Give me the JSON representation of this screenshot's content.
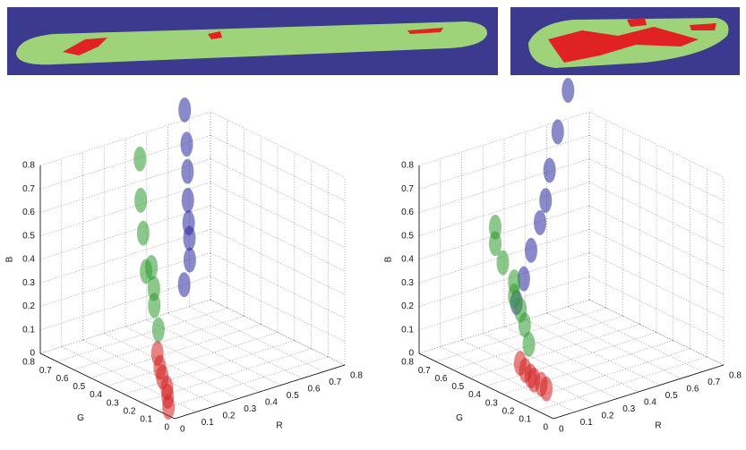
{
  "chart_data": [
    {
      "type": "scatter3d",
      "xlabel": "R",
      "ylabel": "G",
      "zlabel": "B",
      "xlim": [
        0,
        0.8
      ],
      "ylim": [
        0,
        0.8
      ],
      "zlim": [
        0,
        0.8
      ],
      "xticks": [
        0,
        0.1,
        0.2,
        0.3,
        0.4,
        0.5,
        0.6,
        0.7,
        0.8
      ],
      "yticks": [
        0,
        0.1,
        0.2,
        0.3,
        0.4,
        0.5,
        0.6,
        0.7,
        0.8
      ],
      "zticks": [
        0,
        0.1,
        0.2,
        0.3,
        0.4,
        0.5,
        0.6,
        0.7,
        0.8
      ],
      "grid": true,
      "series": [
        {
          "color": "#2e9a2e",
          "x": [
            0.2,
            0.22,
            0.25,
            0.27,
            0.3,
            0.31,
            0.33,
            0.35
          ],
          "y": [
            0.35,
            0.4,
            0.44,
            0.48,
            0.55,
            0.58,
            0.62,
            0.65
          ],
          "z": [
            0.2,
            0.28,
            0.33,
            0.4,
            0.35,
            0.5,
            0.62,
            0.78
          ]
        },
        {
          "color": "#2a2aa0",
          "x": [
            0.4,
            0.45,
            0.48,
            0.5,
            0.52,
            0.55,
            0.57,
            0.6
          ],
          "y": [
            0.45,
            0.48,
            0.52,
            0.55,
            0.58,
            0.62,
            0.65,
            0.7
          ],
          "z": [
            0.3,
            0.38,
            0.45,
            0.5,
            0.58,
            0.68,
            0.78,
            0.9
          ]
        },
        {
          "color": "#d42020",
          "x": [
            0.05,
            0.07,
            0.09,
            0.1,
            0.12,
            0.14
          ],
          "y": [
            0.1,
            0.13,
            0.16,
            0.2,
            0.24,
            0.28
          ],
          "z": [
            0.0,
            0.03,
            0.05,
            0.08,
            0.1,
            0.14
          ]
        }
      ]
    },
    {
      "type": "scatter3d",
      "xlabel": "R",
      "ylabel": "G",
      "zlabel": "B",
      "xlim": [
        0,
        0.8
      ],
      "ylim": [
        0,
        0.8
      ],
      "zlim": [
        0,
        0.8
      ],
      "xticks": [
        0,
        0.1,
        0.2,
        0.3,
        0.4,
        0.5,
        0.6,
        0.7,
        0.8
      ],
      "yticks": [
        0,
        0.1,
        0.2,
        0.3,
        0.4,
        0.5,
        0.6,
        0.7,
        0.8
      ],
      "zticks": [
        0,
        0.1,
        0.2,
        0.3,
        0.4,
        0.5,
        0.6,
        0.7,
        0.8
      ],
      "grid": true,
      "series": [
        {
          "color": "#2a2aa0",
          "x": [
            0.3,
            0.35,
            0.4,
            0.45,
            0.5,
            0.55,
            0.62,
            0.7
          ],
          "y": [
            0.6,
            0.62,
            0.64,
            0.65,
            0.68,
            0.72,
            0.76,
            0.8
          ],
          "z": [
            0.2,
            0.28,
            0.38,
            0.48,
            0.55,
            0.65,
            0.78,
            0.92
          ]
        },
        {
          "color": "#2e9a2e",
          "x": [
            0.2,
            0.22,
            0.24,
            0.25,
            0.25,
            0.22,
            0.2,
            0.2
          ],
          "y": [
            0.4,
            0.45,
            0.5,
            0.55,
            0.55,
            0.58,
            0.6,
            0.6
          ],
          "z": [
            0.12,
            0.18,
            0.22,
            0.26,
            0.32,
            0.4,
            0.48,
            0.55
          ]
        },
        {
          "color": "#d42020",
          "x": [
            0.12,
            0.12,
            0.13,
            0.13,
            0.14,
            0.14
          ],
          "y": [
            0.35,
            0.32,
            0.3,
            0.28,
            0.25,
            0.22
          ],
          "z": [
            0.08,
            0.06,
            0.04,
            0.03,
            0.02,
            0.01
          ]
        }
      ]
    }
  ]
}
